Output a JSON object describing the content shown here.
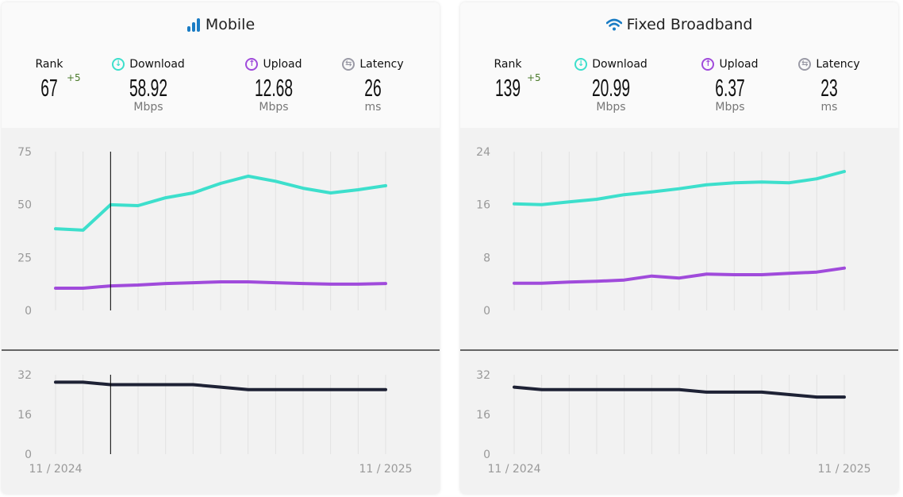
{
  "panels": [
    {
      "title": "Mobile",
      "icon": "signal-bars-icon",
      "rank_label": "Rank",
      "rank": "67",
      "rank_delta": "+5",
      "download_label": "Download",
      "download": "58.92",
      "download_unit": "Mbps",
      "upload_label": "Upload",
      "upload": "12.68",
      "upload_unit": "Mbps",
      "latency_label": "Latency",
      "latency": "26",
      "latency_unit": "ms"
    },
    {
      "title": "Fixed Broadband",
      "icon": "wifi-icon",
      "rank_label": "Rank",
      "rank": "139",
      "rank_delta": "+5",
      "download_label": "Download",
      "download": "20.99",
      "download_unit": "Mbps",
      "upload_label": "Upload",
      "upload": "6.37",
      "upload_unit": "Mbps",
      "latency_label": "Latency",
      "latency": "23",
      "latency_unit": "ms"
    }
  ],
  "colors": {
    "download": "#3ddfcc",
    "upload": "#a04bdb",
    "latency": "#1e2235",
    "brand": "#1a7cc4",
    "latency_icon": "#9a9aa6"
  },
  "chart_data": [
    {
      "type": "line",
      "title": "Mobile",
      "x_start_label": "11 / 2024",
      "x_end_label": "11 / 2025",
      "points": 13,
      "hover_index": 2,
      "speed": {
        "yticks": [
          "0",
          "25",
          "50",
          "75"
        ],
        "ylim": [
          0,
          75
        ],
        "series": [
          {
            "name": "Download",
            "values": [
              38.6,
              37.9,
              49.9,
              49.5,
              53.2,
              55.5,
              60,
              63.4,
              61,
              57.7,
              55.5,
              57,
              58.9
            ]
          },
          {
            "name": "Upload",
            "values": [
              10.5,
              10.5,
              11.6,
              12,
              12.7,
              13.1,
              13.5,
              13.5,
              13.1,
              12.7,
              12.4,
              12.4,
              12.7
            ]
          }
        ]
      },
      "latency": {
        "yticks": [
          "0",
          "16",
          "32"
        ],
        "ylim": [
          0,
          32
        ],
        "series": [
          {
            "name": "Latency",
            "values": [
              29,
              29,
              28,
              28,
              28,
              28,
              27,
              26,
              26,
              26,
              26,
              26,
              26
            ]
          }
        ]
      }
    },
    {
      "type": "line",
      "title": "Fixed Broadband",
      "x_start_label": "11 / 2024",
      "x_end_label": "11 / 2025",
      "points": 13,
      "hover_index": null,
      "speed": {
        "yticks": [
          "0",
          "8",
          "16",
          "24"
        ],
        "ylim": [
          0,
          24
        ],
        "series": [
          {
            "name": "Download",
            "values": [
              16.1,
              16,
              16.4,
              16.8,
              17.5,
              17.9,
              18.4,
              19,
              19.3,
              19.4,
              19.3,
              19.9,
              21
            ]
          },
          {
            "name": "Upload",
            "values": [
              4.1,
              4.1,
              4.3,
              4.4,
              4.6,
              5.2,
              4.9,
              5.5,
              5.4,
              5.4,
              5.6,
              5.8,
              6.4
            ]
          }
        ]
      },
      "latency": {
        "yticks": [
          "0",
          "16",
          "32"
        ],
        "ylim": [
          0,
          32
        ],
        "series": [
          {
            "name": "Latency",
            "values": [
              27,
              26,
              26,
              26,
              26,
              26,
              26,
              25,
              25,
              25,
              24,
              23,
              23
            ]
          }
        ]
      }
    }
  ]
}
